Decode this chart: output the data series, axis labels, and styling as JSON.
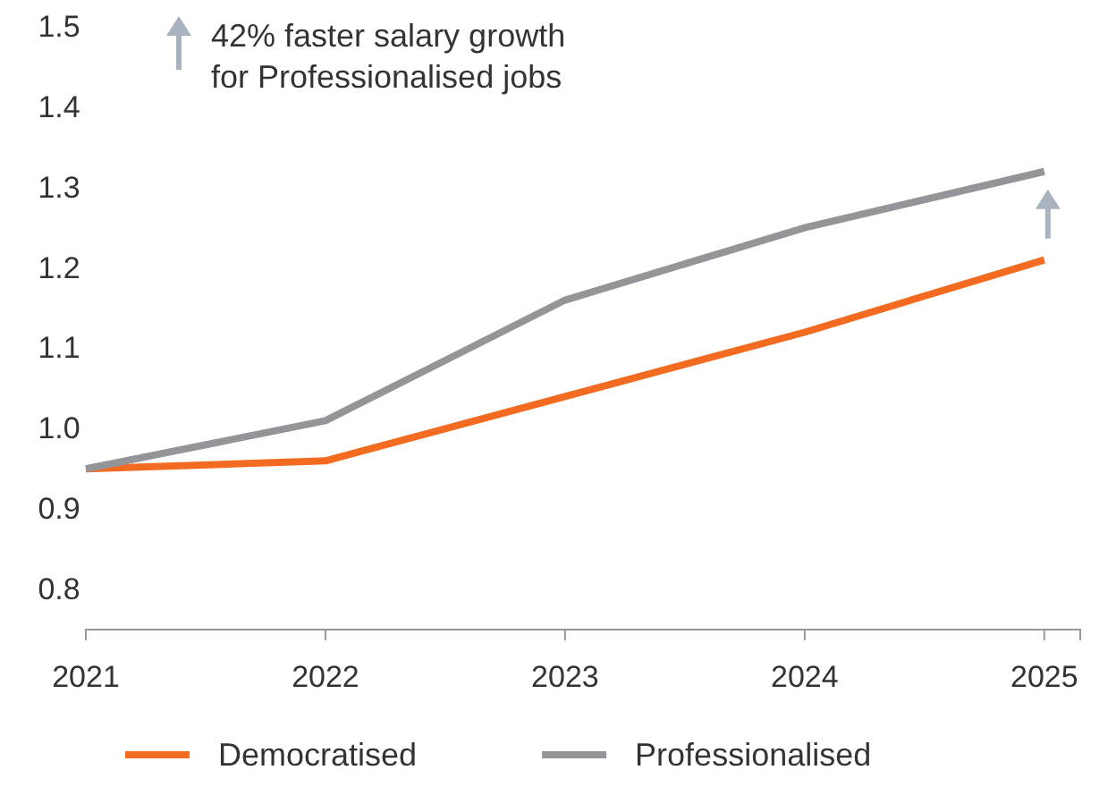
{
  "chart_data": {
    "type": "line",
    "x": [
      2021,
      2022,
      2023,
      2024,
      2025
    ],
    "series": [
      {
        "name": "Democratised",
        "color": "#f26b21",
        "values": [
          0.95,
          0.96,
          1.04,
          1.12,
          1.21
        ]
      },
      {
        "name": "Professionalised",
        "color": "#939598",
        "values": [
          0.95,
          1.01,
          1.16,
          1.25,
          1.32
        ]
      }
    ],
    "xlim": [
      2021,
      2025.15
    ],
    "xticks": [
      2021,
      2022,
      2023,
      2024,
      2025
    ],
    "ylim": [
      0.75,
      1.5
    ],
    "yticks": [
      {
        "value": 0.8,
        "label": "0.8"
      },
      {
        "value": 0.9,
        "label": "0.9"
      },
      {
        "value": 1,
        "label": "1.0"
      },
      {
        "value": 1.1,
        "label": "1.1"
      },
      {
        "value": 1.2,
        "label": "1.2"
      },
      {
        "value": 1.3,
        "label": "1.3"
      },
      {
        "value": 1.4,
        "label": "1.4"
      },
      {
        "value": 1.5,
        "label": "1.5"
      }
    ],
    "grid": false,
    "legend": "bottom",
    "line_style": "solid",
    "marker": "none",
    "annotations": [
      "42% faster salary growth for Professionalised jobs"
    ]
  }
}
